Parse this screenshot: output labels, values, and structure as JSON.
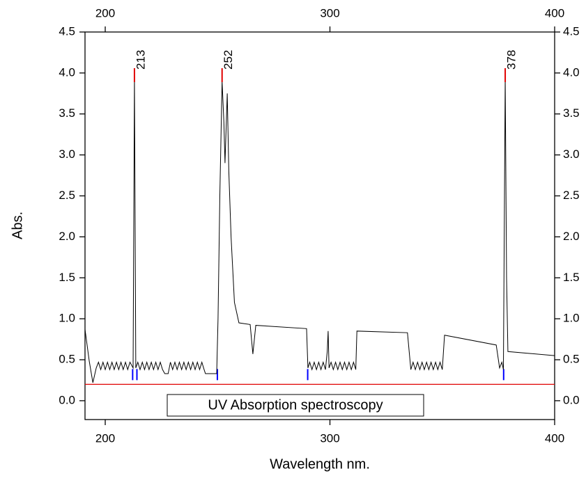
{
  "chart_data": {
    "type": "line",
    "xlabel": "Wavelength nm.",
    "ylabel": "Abs.",
    "xlim": [
      191,
      400
    ],
    "ylim": [
      -0.23,
      4.5
    ],
    "xticks": [
      200,
      300,
      400
    ],
    "yticks": [
      {
        "value": 0,
        "label": "0.0"
      },
      0.5,
      {
        "value": 1,
        "label": "1.0"
      },
      1.5,
      {
        "value": 2,
        "label": "2.0"
      },
      2.5,
      {
        "value": 3,
        "label": "3.0"
      },
      3.5,
      {
        "value": 4,
        "label": "4.0"
      },
      4.5
    ],
    "x": [
      191,
      192.9,
      194.5,
      196,
      197,
      198,
      199,
      200,
      201,
      202,
      203,
      204,
      205,
      206,
      207,
      208,
      209,
      210,
      211,
      212.4,
      213,
      213.6,
      214.5,
      215.5,
      216.5,
      217.5,
      218.5,
      219.5,
      220.5,
      221.5,
      222.5,
      223.5,
      224.5,
      225.5,
      226.5,
      228,
      229,
      230,
      231,
      232,
      233,
      234,
      235,
      236,
      237,
      238,
      239,
      240,
      241,
      242,
      243,
      244,
      244.6,
      249.6,
      250.2,
      251,
      252,
      252.8,
      253.3,
      254.3,
      255,
      256,
      257.5,
      259.5,
      264.5,
      265.7,
      267,
      289.6,
      290.2,
      291,
      292,
      293,
      294,
      295,
      296,
      297,
      298,
      298.8,
      299.2,
      299.6,
      300.5,
      301.5,
      302.5,
      303.5,
      304.5,
      305.5,
      306.5,
      307.5,
      308.5,
      309.5,
      310.5,
      311.5,
      312,
      334.5,
      336,
      337,
      338,
      339,
      340,
      341,
      342,
      343,
      344,
      345,
      346,
      347,
      348,
      349,
      350,
      351,
      374,
      375.5,
      376.5,
      377.2,
      378,
      378.6,
      379.2,
      400
    ],
    "series": [
      {
        "name": "UV Absorption spectroscopy",
        "color": "#000000",
        "values": [
          0.87,
          0.48,
          0.22,
          0.4,
          0.47,
          0.38,
          0.47,
          0.38,
          0.47,
          0.38,
          0.47,
          0.38,
          0.47,
          0.38,
          0.47,
          0.38,
          0.47,
          0.38,
          0.47,
          0.4,
          3.95,
          0.4,
          0.47,
          0.38,
          0.47,
          0.38,
          0.47,
          0.38,
          0.47,
          0.38,
          0.47,
          0.38,
          0.47,
          0.38,
          0.33,
          0.33,
          0.47,
          0.38,
          0.47,
          0.38,
          0.47,
          0.38,
          0.47,
          0.38,
          0.47,
          0.38,
          0.47,
          0.38,
          0.47,
          0.38,
          0.47,
          0.38,
          0.33,
          0.33,
          1.0,
          2.5,
          3.9,
          3.4,
          2.9,
          3.75,
          2.8,
          2.0,
          1.2,
          0.95,
          0.93,
          0.57,
          0.92,
          0.88,
          0.4,
          0.47,
          0.38,
          0.47,
          0.38,
          0.47,
          0.38,
          0.47,
          0.38,
          0.6,
          0.85,
          0.4,
          0.47,
          0.38,
          0.47,
          0.38,
          0.47,
          0.38,
          0.47,
          0.38,
          0.47,
          0.38,
          0.47,
          0.38,
          0.85,
          0.83,
          0.38,
          0.47,
          0.38,
          0.47,
          0.38,
          0.47,
          0.38,
          0.47,
          0.38,
          0.47,
          0.38,
          0.47,
          0.38,
          0.47,
          0.38,
          0.8,
          0.68,
          0.4,
          0.47,
          0.38,
          3.95,
          1.5,
          0.6,
          0.55
        ]
      }
    ],
    "peaks": [
      213,
      252,
      378
    ],
    "peak_color": "#e00000",
    "baseline": 0.2,
    "baseline_color": "#e00000",
    "baseline_markers": [
      212.2,
      214.1,
      249.9,
      290.1,
      377.3
    ],
    "baseline_marker_color": "#0000ff"
  }
}
